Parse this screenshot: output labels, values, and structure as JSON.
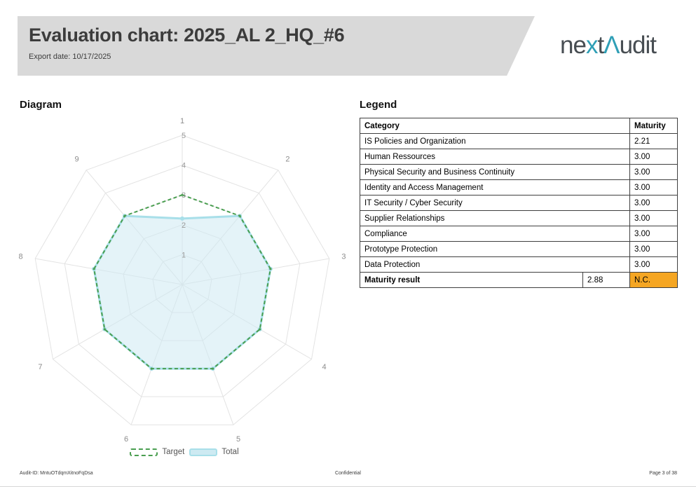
{
  "header": {
    "title": "Evaluation chart: 2025_AL 2_HQ_#6",
    "export_date": "Export date: 10/17/2025",
    "banner_color": "#d9d9d9"
  },
  "logo": {
    "part_ne": "ne",
    "part_x": "x",
    "part_t": "t",
    "part_lambda": "Λ",
    "part_udit": "udit",
    "dark_color": "#474d52",
    "accent_color": "#2f9fb6"
  },
  "diagram": {
    "section_title": "Diagram",
    "chart_legend": [
      {
        "label": "Target",
        "swatch": "dashed-outline"
      },
      {
        "label": "Total",
        "swatch": "filled"
      }
    ]
  },
  "chart_data": {
    "type": "radar",
    "axes": [
      "1",
      "2",
      "3",
      "4",
      "5",
      "6",
      "7",
      "8",
      "9"
    ],
    "rmin": 0,
    "rmax": 5,
    "ticks": [
      1,
      2,
      3,
      4,
      5
    ],
    "grid": true,
    "grid_color": "#e3e3e3",
    "tick_label_color": "#999999",
    "axis_label_color": "#8c8c8c",
    "legend_position": "bottom",
    "series": [
      {
        "name": "Target",
        "style": "dashed-line",
        "color": "#4a9e50",
        "values": [
          3,
          3,
          3,
          3,
          3,
          3,
          3,
          3,
          3
        ]
      },
      {
        "name": "Total",
        "style": "filled-area",
        "line_color": "#a8dfe9",
        "fill_color": "#cdeaf2",
        "fill_opacity": 0.55,
        "values": [
          2.21,
          3,
          3,
          3,
          3,
          3,
          3,
          3,
          3
        ]
      }
    ]
  },
  "legend_table": {
    "section_title": "Legend",
    "columns": [
      "Category",
      "Maturity"
    ],
    "rows": [
      {
        "category": "IS Policies and Organization",
        "maturity": "2.21"
      },
      {
        "category": "Human Ressources",
        "maturity": "3.00"
      },
      {
        "category": "Physical Security and Business Continuity",
        "maturity": "3.00"
      },
      {
        "category": "Identity and Access Management",
        "maturity": "3.00"
      },
      {
        "category": "IT Security / Cyber Security",
        "maturity": "3.00"
      },
      {
        "category": "Supplier Relationships",
        "maturity": "3.00"
      },
      {
        "category": "Compliance",
        "maturity": "3.00"
      },
      {
        "category": "Prototype Protection",
        "maturity": "3.00"
      },
      {
        "category": "Data Protection",
        "maturity": "3.00"
      }
    ],
    "result_row": {
      "label": "Maturity result",
      "value": "2.88",
      "status": "N.C.",
      "status_bg": "#f5a623"
    }
  },
  "footer": {
    "audit_id": "Audit-ID: MntuOTdqmXitnoFqDsa",
    "confidential": "Confidential",
    "page_label": "Page 3 of 38"
  }
}
